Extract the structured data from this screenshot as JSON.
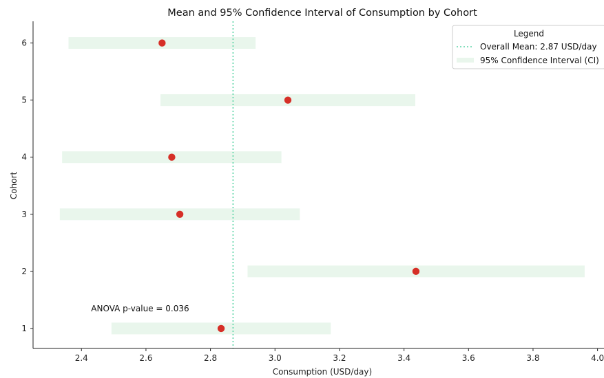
{
  "chart_data": {
    "type": "scatter",
    "title": "Mean and 95% Confidence Interval of Consumption by Cohort",
    "xlabel": "Consumption (USD/day)",
    "ylabel": "Cohort",
    "xlim": [
      2.25,
      4.02
    ],
    "ylim": [
      0.65,
      6.38
    ],
    "x_ticks": [
      2.4,
      2.6,
      2.8,
      3.0,
      3.2,
      3.4,
      3.6,
      3.8,
      4.0
    ],
    "x_tick_labels": [
      "2.4",
      "2.6",
      "2.8",
      "3.0",
      "3.2",
      "3.4",
      "3.6",
      "3.8",
      "4.0"
    ],
    "y_ticks": [
      1,
      2,
      3,
      4,
      5,
      6
    ],
    "y_tick_labels": [
      "1",
      "2",
      "3",
      "4",
      "5",
      "6"
    ],
    "grid": false,
    "series": [
      {
        "name": "",
        "points": [
          {
            "cohort": 6,
            "mean": 2.65,
            "ci_low": 2.36,
            "ci_high": 2.94
          },
          {
            "cohort": 5,
            "mean": 3.04,
            "ci_low": 2.645,
            "ci_high": 3.435
          },
          {
            "cohort": 4,
            "mean": 2.68,
            "ci_low": 2.34,
            "ci_high": 3.02
          },
          {
            "cohort": 3,
            "mean": 2.705,
            "ci_low": 2.333,
            "ci_high": 3.077
          },
          {
            "cohort": 2,
            "mean": 3.437,
            "ci_low": 2.915,
            "ci_high": 3.96
          },
          {
            "cohort": 1,
            "mean": 2.833,
            "ci_low": 2.493,
            "ci_high": 3.173
          }
        ]
      }
    ],
    "reference_line": {
      "x": 2.87,
      "label": "Overall Mean: 2.87 USD/day"
    },
    "legend": {
      "title": "Legend",
      "placement": "top-right",
      "entries": [
        "Overall Mean: 2.87 USD/day",
        "95% Confidence Interval (CI)"
      ]
    },
    "annotation": {
      "text": "ANOVA p-value = 0.036",
      "x": 2.43,
      "y": 1.35
    }
  },
  "colors": {
    "point": "#d62f27",
    "ci_band": "#e9f6ec",
    "mean_line": "#5ad4a6",
    "axis": "#222222"
  }
}
